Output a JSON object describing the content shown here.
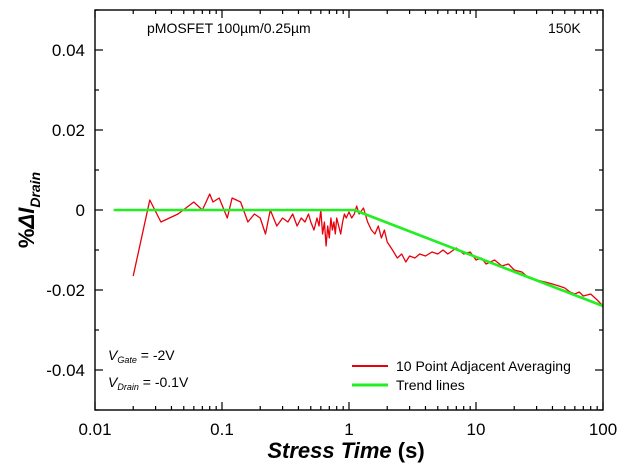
{
  "chart_data": {
    "type": "line",
    "title": "pMOSFET 100µm/0.25µm",
    "temperature": "150K",
    "xlabel": {
      "main": "Stress Time",
      "unit": " (s)"
    },
    "ylabel": {
      "prefix": "%",
      "delta": "Δ",
      "var": "I",
      "sub": "Drain"
    },
    "xscale": "log",
    "xlim": [
      0.01,
      100
    ],
    "ylim": [
      -0.05,
      0.05
    ],
    "x_ticks": [
      0.01,
      0.1,
      1,
      10,
      100
    ],
    "x_tick_labels": [
      "0.01",
      "0.1",
      "1",
      "10",
      "100"
    ],
    "y_ticks": [
      0.04,
      0.02,
      0,
      -0.02,
      -0.04
    ],
    "y_tick_labels": [
      "0.04",
      "0.02",
      "0",
      "-0.02",
      "-0.04"
    ],
    "grid": false,
    "legend": {
      "position": "bottom-right",
      "entries": [
        "10 Point Adjacent Averaging",
        "Trend lines"
      ]
    },
    "annotations": {
      "vgate": {
        "var": "V",
        "sub": "Gate",
        "value": " = -2V"
      },
      "vdrain": {
        "var": "V",
        "sub": "Drain",
        "value": " = -0.1V"
      }
    },
    "series": [
      {
        "name": "10 Point Adjacent Averaging",
        "color": "#e8000b",
        "x": [
          0.02,
          0.027,
          0.033,
          0.045,
          0.06,
          0.07,
          0.075,
          0.08,
          0.085,
          0.095,
          0.11,
          0.12,
          0.14,
          0.16,
          0.18,
          0.2,
          0.22,
          0.24,
          0.27,
          0.3,
          0.33,
          0.36,
          0.39,
          0.42,
          0.45,
          0.48,
          0.5,
          0.53,
          0.56,
          0.58,
          0.6,
          0.62,
          0.64,
          0.66,
          0.68,
          0.7,
          0.72,
          0.74,
          0.76,
          0.78,
          0.8,
          0.83,
          0.86,
          0.89,
          0.92,
          0.95,
          1.0,
          1.05,
          1.1,
          1.15,
          1.2,
          1.3,
          1.4,
          1.5,
          1.6,
          1.7,
          1.8,
          1.9,
          2.0,
          2.2,
          2.4,
          2.6,
          2.8,
          3.0,
          3.3,
          3.6,
          4.0,
          4.5,
          5.0,
          5.5,
          6.0,
          7.0,
          8.0,
          9.0,
          10,
          11,
          12,
          14,
          16,
          18,
          20,
          23,
          26,
          30,
          35,
          40,
          45,
          50,
          55,
          60,
          65,
          70,
          80,
          90,
          100
        ],
        "y": [
          -0.0165,
          0.0025,
          -0.003,
          -0.001,
          0.002,
          0.0,
          0.002,
          0.004,
          0.002,
          0.003,
          -0.002,
          0.003,
          0.002,
          -0.003,
          -0.001,
          -0.002,
          -0.006,
          0.0,
          -0.004,
          -0.002,
          -0.003,
          -0.001,
          -0.004,
          -0.002,
          -0.003,
          -0.001,
          -0.003,
          -0.005,
          -0.002,
          -0.004,
          0.0,
          -0.006,
          -0.003,
          -0.009,
          -0.004,
          -0.007,
          -0.002,
          -0.005,
          -0.003,
          -0.006,
          -0.002,
          -0.004,
          -0.006,
          -0.003,
          -0.001,
          -0.002,
          -0.0005,
          -0.002,
          -0.001,
          0.001,
          -0.001,
          0.0005,
          -0.003,
          -0.005,
          -0.006,
          -0.004,
          -0.007,
          -0.005,
          -0.008,
          -0.01,
          -0.012,
          -0.011,
          -0.013,
          -0.0115,
          -0.012,
          -0.011,
          -0.0115,
          -0.0105,
          -0.011,
          -0.01,
          -0.011,
          -0.0095,
          -0.011,
          -0.0105,
          -0.0125,
          -0.012,
          -0.0135,
          -0.0125,
          -0.014,
          -0.0135,
          -0.015,
          -0.0155,
          -0.017,
          -0.0175,
          -0.018,
          -0.0185,
          -0.019,
          -0.0195,
          -0.0205,
          -0.021,
          -0.0205,
          -0.0215,
          -0.021,
          -0.0225,
          -0.024
        ]
      },
      {
        "name": "Trend lines",
        "color": "#22ee22",
        "x": [
          0.014,
          1.1,
          100
        ],
        "y": [
          0.0,
          0.0,
          -0.024
        ]
      }
    ]
  }
}
